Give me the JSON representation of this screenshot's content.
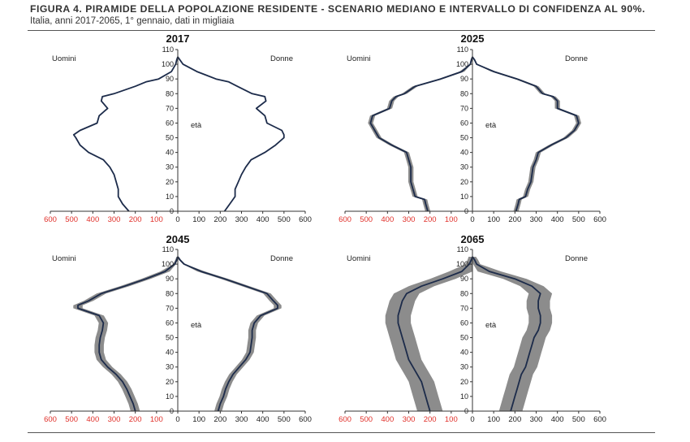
{
  "figure": {
    "title_bold": "FIGURA 4. PIRAMIDE DELLA POPOLAZIONE RESIDENTE - SCENARIO MEDIANO E INTERVALLO DI CONFIDENZA AL 90%.",
    "title_rest": "Italia, anni 2017-2065, 1° gennaio, dati in migliaia"
  },
  "colors": {
    "line": "#1c2b4a",
    "band": "#8c8c8c",
    "tick_red": "#e0302a",
    "tick_black": "#222222"
  },
  "chart_data": [
    {
      "type": "population-pyramid",
      "title": "2017",
      "left_label": "Uomini",
      "right_label": "Donne",
      "center_label": "età",
      "ylim": [
        0,
        110
      ],
      "xlim": [
        0,
        600
      ],
      "y_ticks": [
        "0",
        "10",
        "20",
        "30",
        "40",
        "50",
        "60",
        "70",
        "80",
        "90",
        "100",
        "110"
      ],
      "x_ticks_left": [
        "600",
        "500",
        "400",
        "300",
        "200",
        "100"
      ],
      "x_ticks_right": [
        "0",
        "100",
        "200",
        "300",
        "400",
        "500",
        "600"
      ],
      "age": [
        0,
        5,
        10,
        15,
        20,
        25,
        30,
        35,
        40,
        45,
        50,
        52,
        55,
        60,
        65,
        70,
        75,
        78,
        80,
        85,
        88,
        90,
        95,
        100,
        103,
        105
      ],
      "men": [
        230,
        260,
        280,
        280,
        290,
        300,
        320,
        350,
        420,
        460,
        480,
        490,
        460,
        380,
        370,
        330,
        360,
        355,
        300,
        200,
        150,
        90,
        30,
        10,
        5,
        0
      ],
      "women": [
        220,
        245,
        270,
        270,
        285,
        300,
        320,
        345,
        410,
        460,
        500,
        500,
        490,
        420,
        410,
        370,
        415,
        410,
        350,
        280,
        240,
        180,
        90,
        25,
        10,
        0
      ],
      "men_band": 0,
      "women_band": 0
    },
    {
      "type": "population-pyramid",
      "title": "2025",
      "left_label": "Uomini",
      "right_label": "Donne",
      "center_label": "età",
      "ylim": [
        0,
        110
      ],
      "xlim": [
        0,
        600
      ],
      "y_ticks": [
        "0",
        "10",
        "20",
        "30",
        "40",
        "50",
        "60",
        "70",
        "80",
        "90",
        "100",
        "110"
      ],
      "x_ticks_left": [
        "600",
        "500",
        "400",
        "300",
        "200",
        "100"
      ],
      "x_ticks_right": [
        "0",
        "100",
        "200",
        "300",
        "400",
        "500",
        "600"
      ],
      "age": [
        0,
        5,
        8,
        10,
        15,
        20,
        25,
        30,
        35,
        40,
        45,
        50,
        55,
        60,
        65,
        70,
        75,
        78,
        80,
        85,
        90,
        95,
        100,
        103,
        105
      ],
      "men": [
        210,
        220,
        225,
        270,
        280,
        290,
        290,
        290,
        300,
        310,
        380,
        440,
        460,
        480,
        470,
        390,
        380,
        360,
        320,
        270,
        150,
        50,
        10,
        5,
        0
      ],
      "women": [
        205,
        215,
        220,
        250,
        260,
        275,
        280,
        285,
        300,
        310,
        370,
        440,
        480,
        500,
        490,
        400,
        400,
        380,
        330,
        300,
        210,
        100,
        20,
        10,
        0
      ],
      "men_band": 12,
      "women_band": 12
    },
    {
      "type": "population-pyramid",
      "title": "2045",
      "left_label": "Uomini",
      "right_label": "Donne",
      "center_label": "età",
      "ylim": [
        0,
        110
      ],
      "xlim": [
        0,
        600
      ],
      "y_ticks": [
        "0",
        "10",
        "20",
        "30",
        "40",
        "50",
        "60",
        "70",
        "80",
        "90",
        "100",
        "110"
      ],
      "x_ticks_left": [
        "600",
        "500",
        "400",
        "300",
        "200",
        "100"
      ],
      "x_ticks_right": [
        "0",
        "100",
        "200",
        "300",
        "400",
        "500",
        "600"
      ],
      "age": [
        0,
        5,
        10,
        15,
        20,
        25,
        30,
        35,
        40,
        45,
        50,
        55,
        60,
        65,
        70,
        72,
        75,
        80,
        85,
        90,
        95,
        100,
        103,
        105
      ],
      "men": [
        200,
        210,
        225,
        240,
        260,
        290,
        330,
        360,
        370,
        370,
        365,
        355,
        350,
        370,
        470,
        470,
        420,
        360,
        250,
        150,
        60,
        15,
        5,
        0
      ],
      "women": [
        190,
        200,
        215,
        225,
        240,
        260,
        290,
        320,
        340,
        345,
        350,
        350,
        360,
        390,
        470,
        470,
        450,
        420,
        320,
        220,
        110,
        30,
        10,
        0
      ],
      "men_band": 22,
      "women_band": 18
    },
    {
      "type": "population-pyramid",
      "title": "2065",
      "left_label": "Uomini",
      "right_label": "Donne",
      "center_label": "età",
      "ylim": [
        0,
        110
      ],
      "xlim": [
        0,
        600
      ],
      "y_ticks": [
        "0",
        "10",
        "20",
        "30",
        "40",
        "50",
        "60",
        "70",
        "80",
        "90",
        "100",
        "110"
      ],
      "x_ticks_left": [
        "600",
        "500",
        "400",
        "300",
        "200",
        "100"
      ],
      "x_ticks_right": [
        "0",
        "100",
        "200",
        "300",
        "400",
        "500",
        "600"
      ],
      "age": [
        0,
        5,
        10,
        15,
        20,
        25,
        30,
        35,
        40,
        45,
        50,
        55,
        60,
        65,
        70,
        75,
        80,
        85,
        90,
        95,
        100,
        103,
        105
      ],
      "men": [
        200,
        210,
        220,
        230,
        240,
        260,
        280,
        300,
        310,
        320,
        330,
        340,
        350,
        350,
        340,
        330,
        310,
        240,
        140,
        50,
        15,
        5,
        0
      ],
      "women": [
        180,
        190,
        200,
        210,
        220,
        230,
        250,
        260,
        270,
        280,
        290,
        310,
        320,
        320,
        310,
        310,
        320,
        280,
        200,
        80,
        20,
        10,
        0
      ],
      "men_band": 60,
      "women_band": 55
    }
  ]
}
